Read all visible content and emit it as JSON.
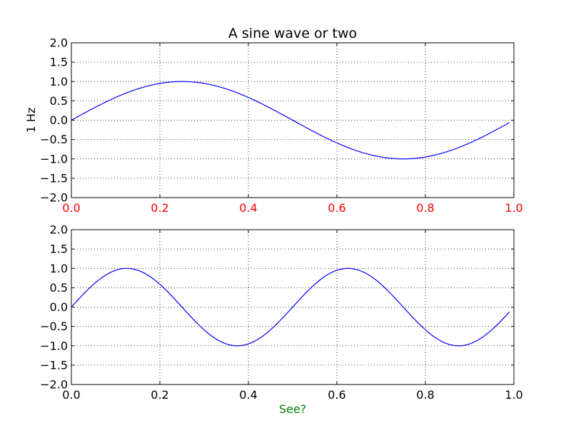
{
  "chart_data": [
    {
      "type": "line",
      "title": "A sine wave or two",
      "xlabel": "",
      "ylabel": "1 Hz",
      "xlim": [
        0.0,
        1.0
      ],
      "ylim": [
        -2.0,
        2.0
      ],
      "xticks": [
        "0.0",
        "0.2",
        "0.4",
        "0.6",
        "0.8",
        "1.0"
      ],
      "yticks": [
        "2.0",
        "1.5",
        "1.0",
        "0.5",
        "0.0",
        "−0.5",
        "−1.0",
        "−1.5",
        "−2.0"
      ],
      "grid": true,
      "series": [
        {
          "frequency_hz": 1,
          "x_range": [
            0.0,
            0.99
          ],
          "color": "#0000ff"
        }
      ],
      "xtick_color": "#ff0000"
    },
    {
      "type": "line",
      "title": "",
      "xlabel": "See?",
      "ylabel": "",
      "xlim": [
        0.0,
        1.0
      ],
      "ylim": [
        -2.0,
        2.0
      ],
      "xticks": [
        "0.0",
        "0.2",
        "0.4",
        "0.6",
        "0.8",
        "1.0"
      ],
      "yticks": [
        "2.0",
        "1.5",
        "1.0",
        "0.5",
        "0.0",
        "−0.5",
        "−1.0",
        "−1.5",
        "−2.0"
      ],
      "grid": true,
      "series": [
        {
          "frequency_hz": 2,
          "x_range": [
            0.0,
            0.99
          ],
          "color": "#0000ff"
        }
      ],
      "xlabel_color": "#008000"
    }
  ]
}
